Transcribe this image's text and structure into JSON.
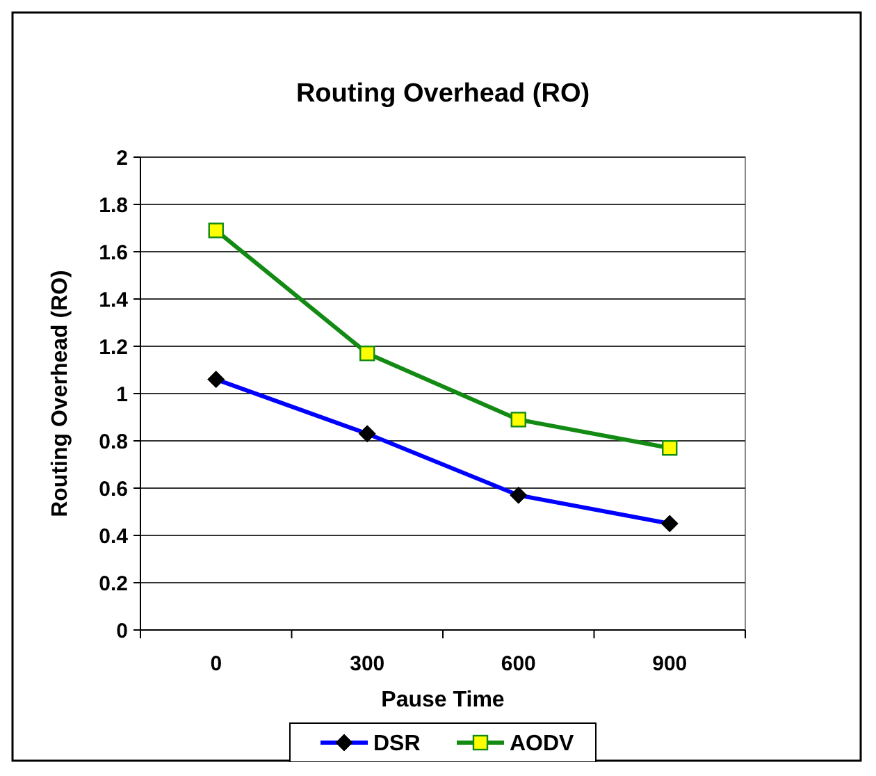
{
  "chart_data": {
    "type": "line",
    "title": "Routing Overhead (RO)",
    "xlabel": "Pause Time",
    "ylabel": "Routing Overhead (RO)",
    "categories": [
      "0",
      "300",
      "600",
      "900"
    ],
    "series": [
      {
        "name": "DSR",
        "color": "#0000ff",
        "values": [
          1.06,
          0.83,
          0.57,
          0.45
        ],
        "marker": "diamond"
      },
      {
        "name": "AODV",
        "color": "#138a13",
        "values": [
          1.69,
          1.17,
          0.89,
          0.77
        ],
        "marker": "square"
      }
    ],
    "ylim": [
      0,
      2
    ],
    "yticks": [
      0,
      0.2,
      0.4,
      0.6,
      0.8,
      1,
      1.2,
      1.4,
      1.6,
      1.8,
      2
    ],
    "grid": "y",
    "legend": "bottom"
  }
}
